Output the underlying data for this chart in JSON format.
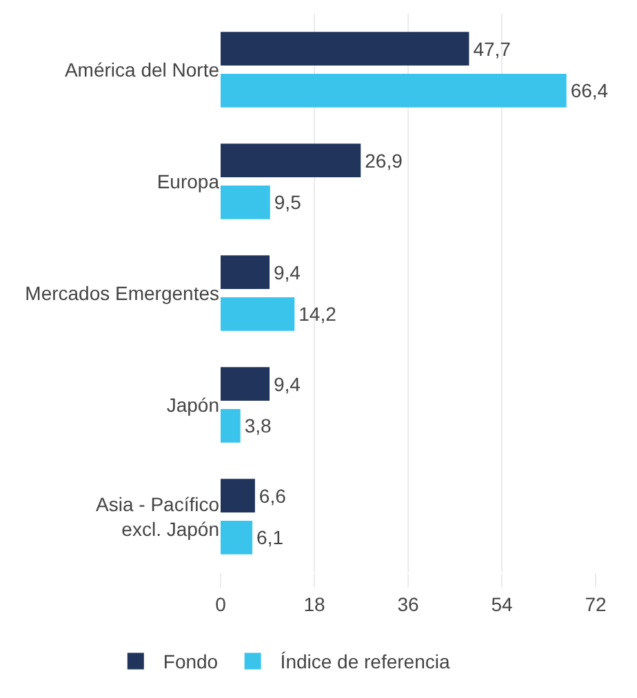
{
  "chart_data": {
    "type": "bar",
    "orientation": "horizontal",
    "categories": [
      "América del Norte",
      "Europa",
      "Mercados Emergentes",
      "Japón",
      "Asia - Pacífico\nexcl. Japón"
    ],
    "series": [
      {
        "name": "Fondo",
        "color": "#21345c",
        "values": [
          47.7,
          26.9,
          9.4,
          9.4,
          6.6
        ],
        "value_labels": [
          "47,7",
          "26,9",
          "9,4",
          "9,4",
          "6,6"
        ]
      },
      {
        "name": "Índice de referencia",
        "color": "#3ac4ec",
        "values": [
          66.4,
          9.5,
          14.2,
          3.8,
          6.1
        ],
        "value_labels": [
          "66,4",
          "9,5",
          "14,2",
          "3,8",
          "6,1"
        ]
      }
    ],
    "xlim": [
      0,
      72
    ],
    "xticks": [
      0,
      18,
      36,
      54,
      72
    ],
    "grid": "x",
    "legend": "bottom"
  }
}
